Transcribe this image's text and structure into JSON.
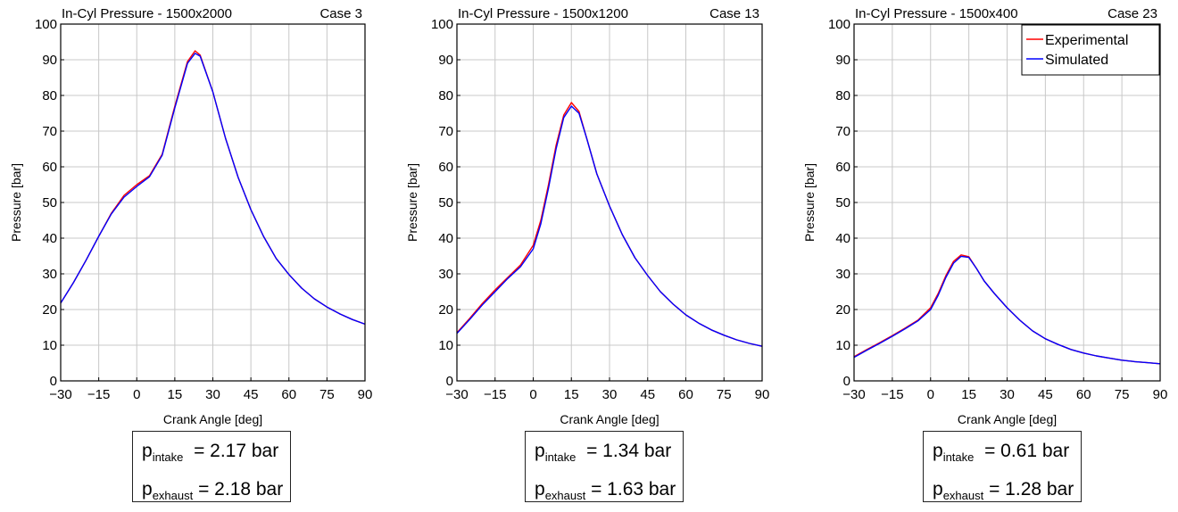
{
  "chart_data": [
    {
      "type": "line",
      "title": "In-Cyl Pressure - 1500x2000",
      "case_label": "Case 3",
      "xlabel": "Crank Angle [deg]",
      "ylabel": "Pressure [bar]",
      "xlim": [
        -30,
        90
      ],
      "ylim": [
        0,
        100
      ],
      "xticks": [
        -30,
        -15,
        0,
        15,
        30,
        45,
        60,
        75,
        90
      ],
      "yticks": [
        0,
        10,
        20,
        30,
        40,
        50,
        60,
        70,
        80,
        90,
        100
      ],
      "grid": true,
      "legend": null,
      "series": [
        {
          "name": "Experimental",
          "color": "#ff0000",
          "x": [
            -30,
            -25,
            -20,
            -15,
            -10,
            -5,
            0,
            5,
            10,
            15,
            20,
            23,
            25,
            30,
            35,
            40,
            45,
            50,
            55,
            60,
            65,
            70,
            75,
            80,
            85,
            90
          ],
          "y": [
            21.8,
            27.5,
            33.8,
            40.5,
            47,
            52,
            55,
            57.5,
            63.5,
            77,
            89.5,
            92.5,
            91.3,
            81,
            68,
            57,
            48,
            40.5,
            34.3,
            29.8,
            26,
            23,
            20.7,
            18.8,
            17.2,
            15.9
          ]
        },
        {
          "name": "Simulated",
          "color": "#0000ff",
          "x": [
            -30,
            -25,
            -20,
            -15,
            -10,
            -5,
            0,
            5,
            10,
            15,
            20,
            23,
            25,
            30,
            35,
            40,
            45,
            50,
            55,
            60,
            65,
            70,
            75,
            80,
            85,
            90
          ],
          "y": [
            21.8,
            27.5,
            33.8,
            40.5,
            46.8,
            51.5,
            54.5,
            57.2,
            63.2,
            76.5,
            89,
            91.8,
            91,
            81,
            68,
            57,
            48,
            40.5,
            34.3,
            29.8,
            26,
            23,
            20.7,
            18.8,
            17.2,
            15.9
          ]
        }
      ]
    },
    {
      "type": "line",
      "title": "In-Cyl Pressure - 1500x1200",
      "case_label": "Case 13",
      "xlabel": "Crank Angle [deg]",
      "ylabel": "Pressure [bar]",
      "xlim": [
        -30,
        90
      ],
      "ylim": [
        0,
        100
      ],
      "xticks": [
        -30,
        -15,
        0,
        15,
        30,
        45,
        60,
        75,
        90
      ],
      "yticks": [
        0,
        10,
        20,
        30,
        40,
        50,
        60,
        70,
        80,
        90,
        100
      ],
      "grid": true,
      "legend": null,
      "series": [
        {
          "name": "Experimental",
          "color": "#ff0000",
          "x": [
            -30,
            -25,
            -20,
            -15,
            -10,
            -5,
            0,
            3,
            6,
            9,
            12,
            15,
            18,
            21,
            25,
            30,
            35,
            40,
            45,
            50,
            55,
            60,
            65,
            70,
            75,
            80,
            85,
            90
          ],
          "y": [
            13.5,
            17.5,
            21.7,
            25.5,
            29,
            32.5,
            38,
            45,
            55,
            66,
            74.5,
            78,
            75.5,
            68,
            58,
            49,
            41,
            34.5,
            29.5,
            25,
            21.5,
            18.5,
            16.2,
            14.3,
            12.8,
            11.5,
            10.5,
            9.7
          ]
        },
        {
          "name": "Simulated",
          "color": "#0000ff",
          "x": [
            -30,
            -25,
            -20,
            -15,
            -10,
            -5,
            0,
            3,
            6,
            9,
            12,
            15,
            18,
            21,
            25,
            30,
            35,
            40,
            45,
            50,
            55,
            60,
            65,
            70,
            75,
            80,
            85,
            90
          ],
          "y": [
            13.3,
            17.2,
            21.3,
            25,
            28.7,
            32,
            37,
            44,
            54,
            65,
            73.8,
            77,
            75,
            68,
            58,
            49,
            41,
            34.5,
            29.5,
            25,
            21.5,
            18.5,
            16.2,
            14.3,
            12.8,
            11.5,
            10.5,
            9.7
          ]
        }
      ]
    },
    {
      "type": "line",
      "title": "In-Cyl Pressure - 1500x400",
      "case_label": "Case 23",
      "xlabel": "Crank Angle [deg]",
      "ylabel": "Pressure [bar]",
      "xlim": [
        -30,
        90
      ],
      "ylim": [
        0,
        100
      ],
      "xticks": [
        -30,
        -15,
        0,
        15,
        30,
        45,
        60,
        75,
        90
      ],
      "yticks": [
        0,
        10,
        20,
        30,
        40,
        50,
        60,
        70,
        80,
        90,
        100
      ],
      "grid": true,
      "legend": "top-right",
      "series": [
        {
          "name": "Experimental",
          "color": "#ff0000",
          "x": [
            -30,
            -25,
            -20,
            -15,
            -10,
            -5,
            0,
            3,
            6,
            9,
            12,
            15,
            18,
            21,
            25,
            30,
            35,
            40,
            45,
            50,
            55,
            60,
            65,
            70,
            75,
            80,
            85,
            90
          ],
          "y": [
            6.8,
            8.8,
            10.7,
            12.7,
            14.8,
            17,
            20.5,
            24.5,
            29.5,
            33.5,
            35.3,
            34.8,
            31.5,
            28,
            24.5,
            20.5,
            17,
            14,
            11.8,
            10.2,
            8.8,
            7.8,
            7,
            6.4,
            5.8,
            5.4,
            5.1,
            4.8
          ]
        },
        {
          "name": "Simulated",
          "color": "#0000ff",
          "x": [
            -30,
            -25,
            -20,
            -15,
            -10,
            -5,
            0,
            3,
            6,
            9,
            12,
            15,
            18,
            21,
            25,
            30,
            35,
            40,
            45,
            50,
            55,
            60,
            65,
            70,
            75,
            80,
            85,
            90
          ],
          "y": [
            6.6,
            8.6,
            10.5,
            12.5,
            14.6,
            16.8,
            20,
            24,
            29,
            33,
            34.9,
            34.6,
            31.5,
            28,
            24.5,
            20.5,
            17,
            14,
            11.8,
            10.2,
            8.8,
            7.8,
            7,
            6.4,
            5.8,
            5.4,
            5.1,
            4.8
          ]
        }
      ]
    }
  ],
  "conditions": [
    {
      "p_label": "p",
      "intake_sub": "intake",
      "intake_value": "= 2.17 bar",
      "exhaust_sub": "exhaust",
      "exhaust_value": "= 2.18 bar"
    },
    {
      "p_label": "p",
      "intake_sub": "intake",
      "intake_value": "= 1.34 bar",
      "exhaust_sub": "exhaust",
      "exhaust_value": "= 1.63 bar"
    },
    {
      "p_label": "p",
      "intake_sub": "intake",
      "intake_value": "= 0.61 bar",
      "exhaust_sub": "exhaust",
      "exhaust_value": "= 1.28 bar"
    }
  ]
}
